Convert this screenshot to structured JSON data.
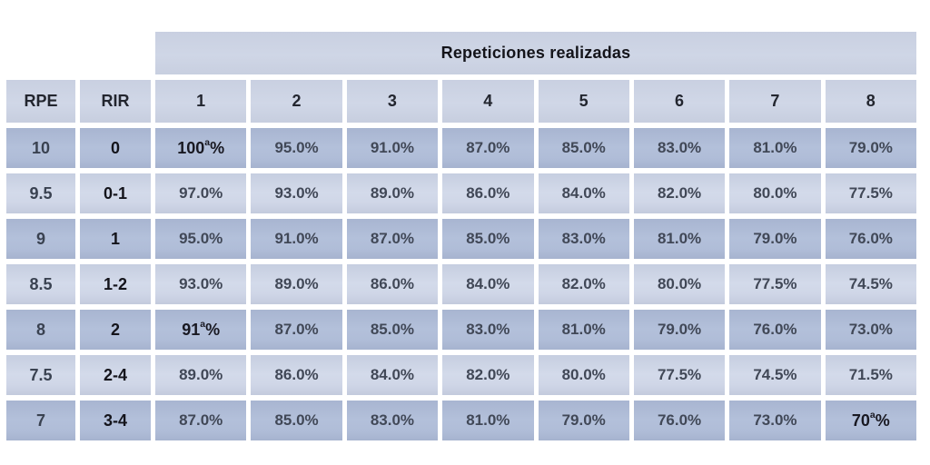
{
  "chart_data": {
    "type": "table",
    "title": "Repeticiones realizadas",
    "columns": [
      "RPE",
      "RIR",
      "1",
      "2",
      "3",
      "4",
      "5",
      "6",
      "7",
      "8"
    ],
    "rows": [
      [
        "10",
        "0",
        "100ᵃ%",
        "95.0%",
        "91.0%",
        "87.0%",
        "85.0%",
        "83.0%",
        "81.0%",
        "79.0%"
      ],
      [
        "9.5",
        "0-1",
        "97.0%",
        "93.0%",
        "89.0%",
        "86.0%",
        "84.0%",
        "82.0%",
        "80.0%",
        "77.5%"
      ],
      [
        "9",
        "1",
        "95.0%",
        "91.0%",
        "87.0%",
        "85.0%",
        "83.0%",
        "81.0%",
        "79.0%",
        "76.0%"
      ],
      [
        "8.5",
        "1-2",
        "93.0%",
        "89.0%",
        "86.0%",
        "84.0%",
        "82.0%",
        "80.0%",
        "77.5%",
        "74.5%"
      ],
      [
        "8",
        "2",
        "91ᵃ%",
        "87.0%",
        "85.0%",
        "83.0%",
        "81.0%",
        "79.0%",
        "76.0%",
        "73.0%"
      ],
      [
        "7.5",
        "2-4",
        "89.0%",
        "86.0%",
        "84.0%",
        "82.0%",
        "80.0%",
        "77.5%",
        "74.5%",
        "71.5%"
      ],
      [
        "7",
        "3-4",
        "87.0%",
        "85.0%",
        "83.0%",
        "81.0%",
        "79.0%",
        "76.0%",
        "73.0%",
        "70ᵃ%"
      ]
    ],
    "superscript_marker": "ᵃ",
    "superscript_letter": "a",
    "layout": {
      "band_spans_columns": "1-8",
      "row_striping": "first data row dark, alternating dark/light"
    },
    "colors": {
      "background": "#ffffff",
      "row_dark": "#aebbd6",
      "row_light": "#cfd6e7",
      "header_fill": "#ccd3e3",
      "text_dark": "#414857",
      "text_black": "#14141a"
    }
  }
}
